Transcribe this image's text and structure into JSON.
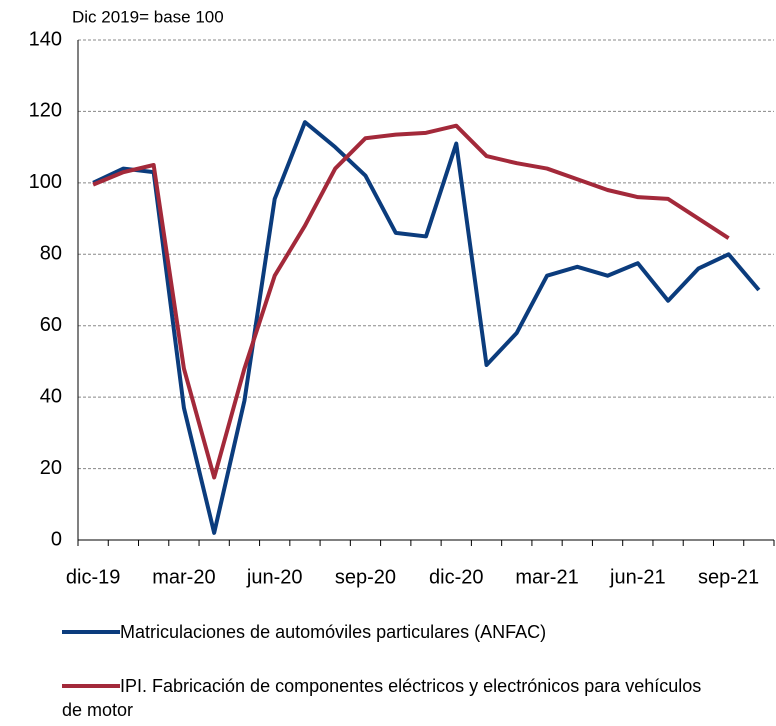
{
  "chart_data": {
    "type": "line",
    "y_label": "Dic 2019= base 100",
    "categories": [
      "dic-19",
      null,
      null,
      "mar-20",
      null,
      null,
      "jun-20",
      null,
      null,
      "sep-20",
      null,
      null,
      "dic-20",
      null,
      null,
      "mar-21",
      null,
      null,
      "jun-21",
      null,
      null,
      "sep-21",
      null
    ],
    "series": [
      {
        "name": "Matriculaciones de automóviles particulares (ANFAC)",
        "color": "#0b3c7d",
        "values": [
          100,
          104,
          103,
          37,
          2,
          39,
          95.5,
          117,
          110,
          102,
          86,
          85,
          111,
          49,
          58,
          74,
          76.5,
          74,
          77.5,
          67,
          76,
          80,
          70
        ]
      },
      {
        "name": "IPI. Fabricación de componentes eléctricos y electrónicos para vehículos de motor",
        "color": "#a3293a",
        "values": [
          99.5,
          103,
          105,
          48,
          17.5,
          48,
          74,
          88,
          104,
          112.5,
          113.5,
          114,
          116,
          107.5,
          105.5,
          104,
          101,
          98,
          96,
          95.5,
          90,
          84.5,
          null
        ]
      }
    ],
    "ylim": [
      0,
      140
    ],
    "yticks": [
      0,
      20,
      40,
      60,
      80,
      100,
      120,
      140
    ],
    "grid": true,
    "legend": "bottom"
  }
}
